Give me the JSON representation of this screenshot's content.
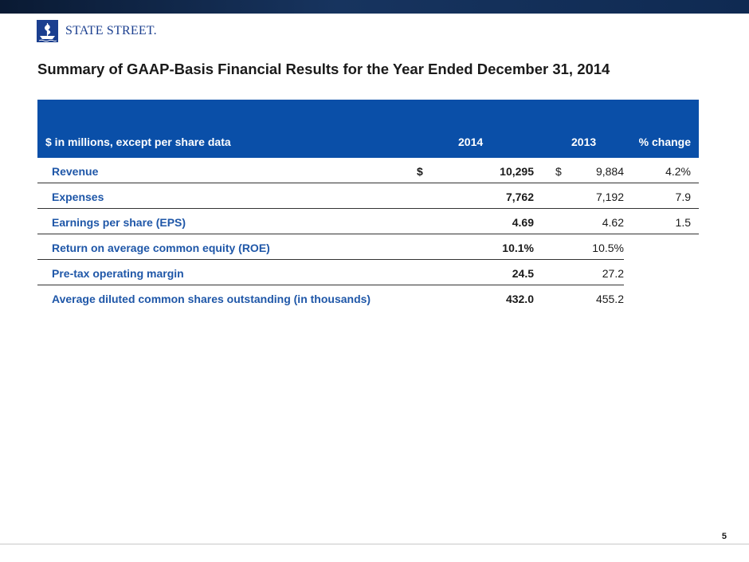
{
  "header": {
    "logo_text": "STATE STREET.",
    "title": "Summary of GAAP-Basis Financial Results for the Year Ended December 31, 2014"
  },
  "table": {
    "columns": {
      "label": "$ in millions, except per share data",
      "y2014": "2014",
      "y2013": "2013",
      "change": "% change"
    },
    "rows": [
      {
        "label": "Revenue",
        "dollar_2014": "$",
        "v2014": "10,295",
        "dollar_2013": "$",
        "v2013": "9,884",
        "change": "4.2%"
      },
      {
        "label": "Expenses",
        "dollar_2014": "",
        "v2014": "7,762",
        "dollar_2013": "",
        "v2013": "7,192",
        "change": "7.9"
      },
      {
        "label": "Earnings per share (EPS)",
        "dollar_2014": "",
        "v2014": "4.69",
        "dollar_2013": "",
        "v2013": "4.62",
        "change": "1.5"
      },
      {
        "label": "Return on average common equity (ROE)",
        "dollar_2014": "",
        "v2014": "10.1%",
        "dollar_2013": "",
        "v2013": "10.5%",
        "change": ""
      },
      {
        "label": "Pre-tax operating margin",
        "dollar_2014": "",
        "v2014": "24.5",
        "dollar_2013": "",
        "v2013": "27.2",
        "change": ""
      },
      {
        "label": "Average diluted common shares outstanding (in thousands)",
        "dollar_2014": "",
        "v2014": "432.0",
        "dollar_2013": "",
        "v2013": "455.2",
        "change": ""
      }
    ]
  },
  "footer": {
    "page_number": "5"
  },
  "colors": {
    "header_fill": "#0a4fa8",
    "label_blue": "#1f57a8",
    "logo_blue": "#1b3f8f"
  }
}
